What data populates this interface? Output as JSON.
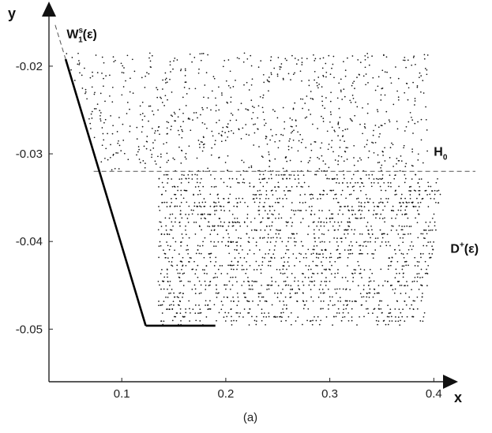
{
  "chart_data": {
    "type": "scatter",
    "xlabel": "x",
    "ylabel": "y",
    "xlim": [
      0.03,
      0.44
    ],
    "ylim": [
      -0.056,
      -0.0138
    ],
    "xticks": [
      0.1,
      0.2,
      0.3,
      0.4
    ],
    "yticks": [
      -0.02,
      -0.03,
      -0.04,
      -0.05
    ],
    "xtick_labels": [
      "0.1",
      "0.2",
      "0.3",
      "0.4"
    ],
    "ytick_labels": [
      "-0.02",
      "-0.03",
      "-0.04",
      "-0.05"
    ],
    "grid": false,
    "caption": "(a)",
    "annotations": [
      {
        "main": "W",
        "sup": "s",
        "sub": "1",
        "tail": "(ε)",
        "x": 0.047,
        "y": -0.0168
      },
      {
        "main": "H",
        "sub": "0",
        "x": 0.4,
        "y": -0.0302
      },
      {
        "main": "D",
        "sup": "+",
        "tail": "(ε)",
        "x": 0.416,
        "y": -0.0413
      }
    ],
    "curves": [
      {
        "kind": "dashed",
        "points": [
          [
            0.036,
            -0.0153
          ],
          [
            0.046,
            -0.0192
          ]
        ]
      },
      {
        "kind": "solid",
        "points": [
          [
            0.046,
            -0.0192
          ],
          [
            0.123,
            -0.0496
          ]
        ]
      },
      {
        "kind": "solid",
        "points": [
          [
            0.123,
            -0.0496
          ],
          [
            0.19,
            -0.0496
          ]
        ]
      },
      {
        "kind": "dashed",
        "points": [
          [
            0.073,
            -0.032
          ],
          [
            0.44,
            -0.032
          ]
        ]
      }
    ],
    "clouds": [
      {
        "region": "upper-left",
        "x_range": [
          0.046,
          0.16
        ],
        "y_range": [
          -0.032,
          -0.0185
        ],
        "n": 230
      },
      {
        "region": "upper-right",
        "x_range": [
          0.16,
          0.395
        ],
        "y_range": [
          -0.032,
          -0.0185
        ],
        "n": 560
      },
      {
        "region": "lower",
        "x_range": [
          0.135,
          0.41
        ],
        "y_range": [
          -0.0495,
          -0.032
        ],
        "n": 1800
      }
    ]
  }
}
